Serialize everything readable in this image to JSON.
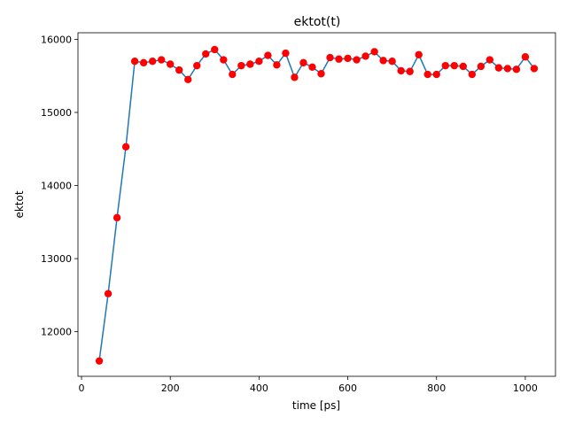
{
  "chart_data": {
    "type": "line",
    "title": "ektot(t)",
    "xlabel": "time [ps]",
    "ylabel": "ektot",
    "xlim": [
      -8,
      1068
    ],
    "ylim": [
      11390,
      16090
    ],
    "xticks": [
      0,
      200,
      400,
      600,
      800,
      1000
    ],
    "yticks": [
      12000,
      13000,
      14000,
      15000,
      16000
    ],
    "grid": false,
    "line_color": "#1f77b4",
    "marker_color": "#ff0000",
    "series": [
      {
        "x": [
          40,
          60,
          80,
          100,
          120,
          140,
          160,
          180,
          200,
          220,
          240,
          260,
          280,
          300,
          320,
          340,
          360,
          380,
          400,
          420,
          440,
          460,
          480,
          500,
          520,
          540,
          560,
          580,
          600,
          620,
          640,
          660,
          680,
          700,
          720,
          740,
          760,
          780,
          800,
          820,
          840,
          860,
          880,
          900,
          920,
          940,
          960,
          980,
          1000,
          1020
        ],
        "values": [
          11600,
          12520,
          13560,
          14530,
          15700,
          15680,
          15700,
          15720,
          15660,
          15580,
          15450,
          15640,
          15800,
          15860,
          15720,
          15520,
          15640,
          15660,
          15700,
          15780,
          15650,
          15810,
          15480,
          15680,
          15620,
          15530,
          15750,
          15730,
          15740,
          15720,
          15770,
          15830,
          15710,
          15700,
          15570,
          15560,
          15790,
          15520,
          15520,
          15640,
          15640,
          15630,
          15520,
          15630,
          15720,
          15610,
          15600,
          15590,
          15760,
          15600
        ]
      }
    ]
  }
}
